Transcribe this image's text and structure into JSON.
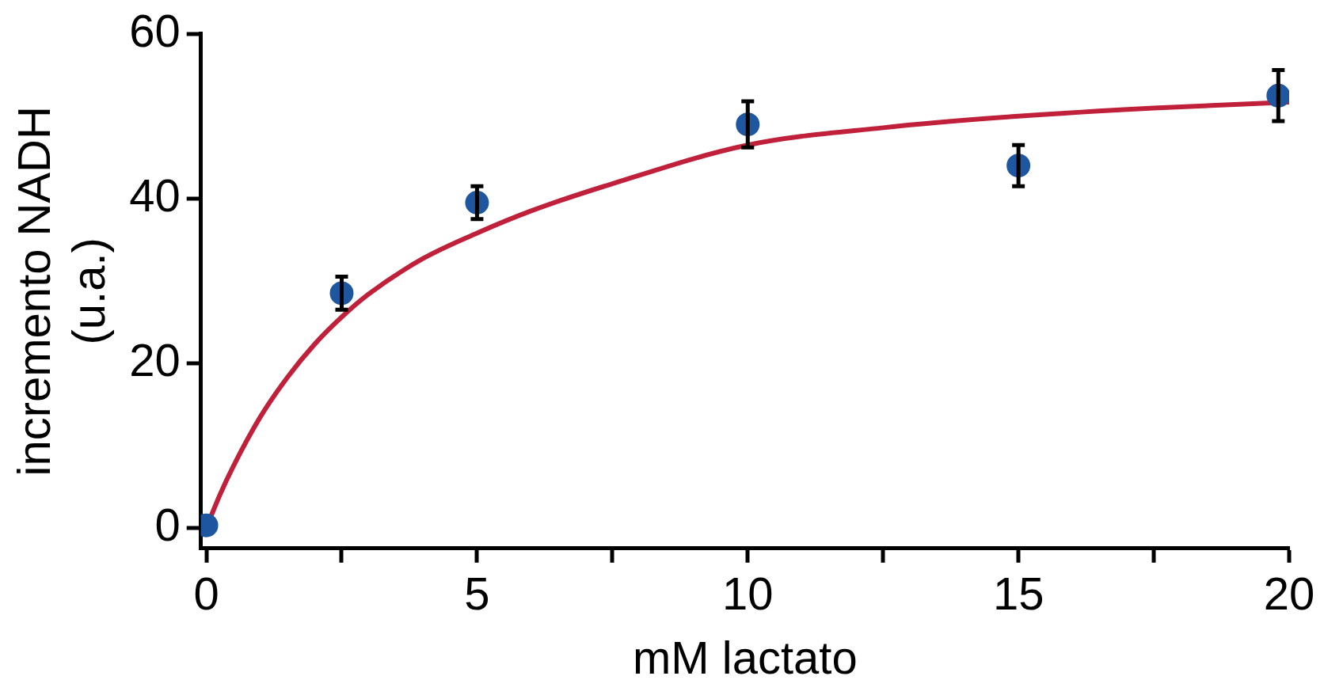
{
  "chart_data": {
    "type": "scatter",
    "xlabel": "mM lactato",
    "ylabel": "incremento NADH\n(u.a.)",
    "xlim": [
      -0.1,
      20
    ],
    "ylim": [
      -2.5,
      60
    ],
    "xticks": [
      0,
      {
        "value": 2.5,
        "label": null
      },
      5,
      {
        "value": 7.5,
        "label": null
      },
      10,
      {
        "value": 12.5,
        "label": null
      },
      15,
      {
        "value": 17.5,
        "label": null
      },
      20
    ],
    "yticks": [
      0,
      20,
      40,
      60
    ],
    "grid": false,
    "legend": false,
    "marker": "circle",
    "series": [
      {
        "type": "scatter",
        "color": "#1f56a0",
        "x": [
          0,
          2.5,
          5,
          10,
          15,
          19.8
        ],
        "values": [
          0.3,
          28.5,
          39.5,
          49,
          44,
          52.5
        ],
        "errors": [
          null,
          2,
          2,
          2.8,
          2.5,
          3.1
        ]
      },
      {
        "type": "line",
        "color": "#c0203a",
        "marker": "none",
        "line_style": "solid",
        "x": [
          0,
          0.25,
          0.5,
          1,
          1.5,
          2,
          2.5,
          3,
          4,
          5,
          6,
          7.5,
          10,
          12.5,
          15,
          17.5,
          20
        ],
        "values": [
          0,
          4,
          7.5,
          13.5,
          18.3,
          22.3,
          25.6,
          28.4,
          32.7,
          35.8,
          38.5,
          41.8,
          46.5,
          48.6,
          50,
          51,
          51.7
        ]
      }
    ]
  }
}
